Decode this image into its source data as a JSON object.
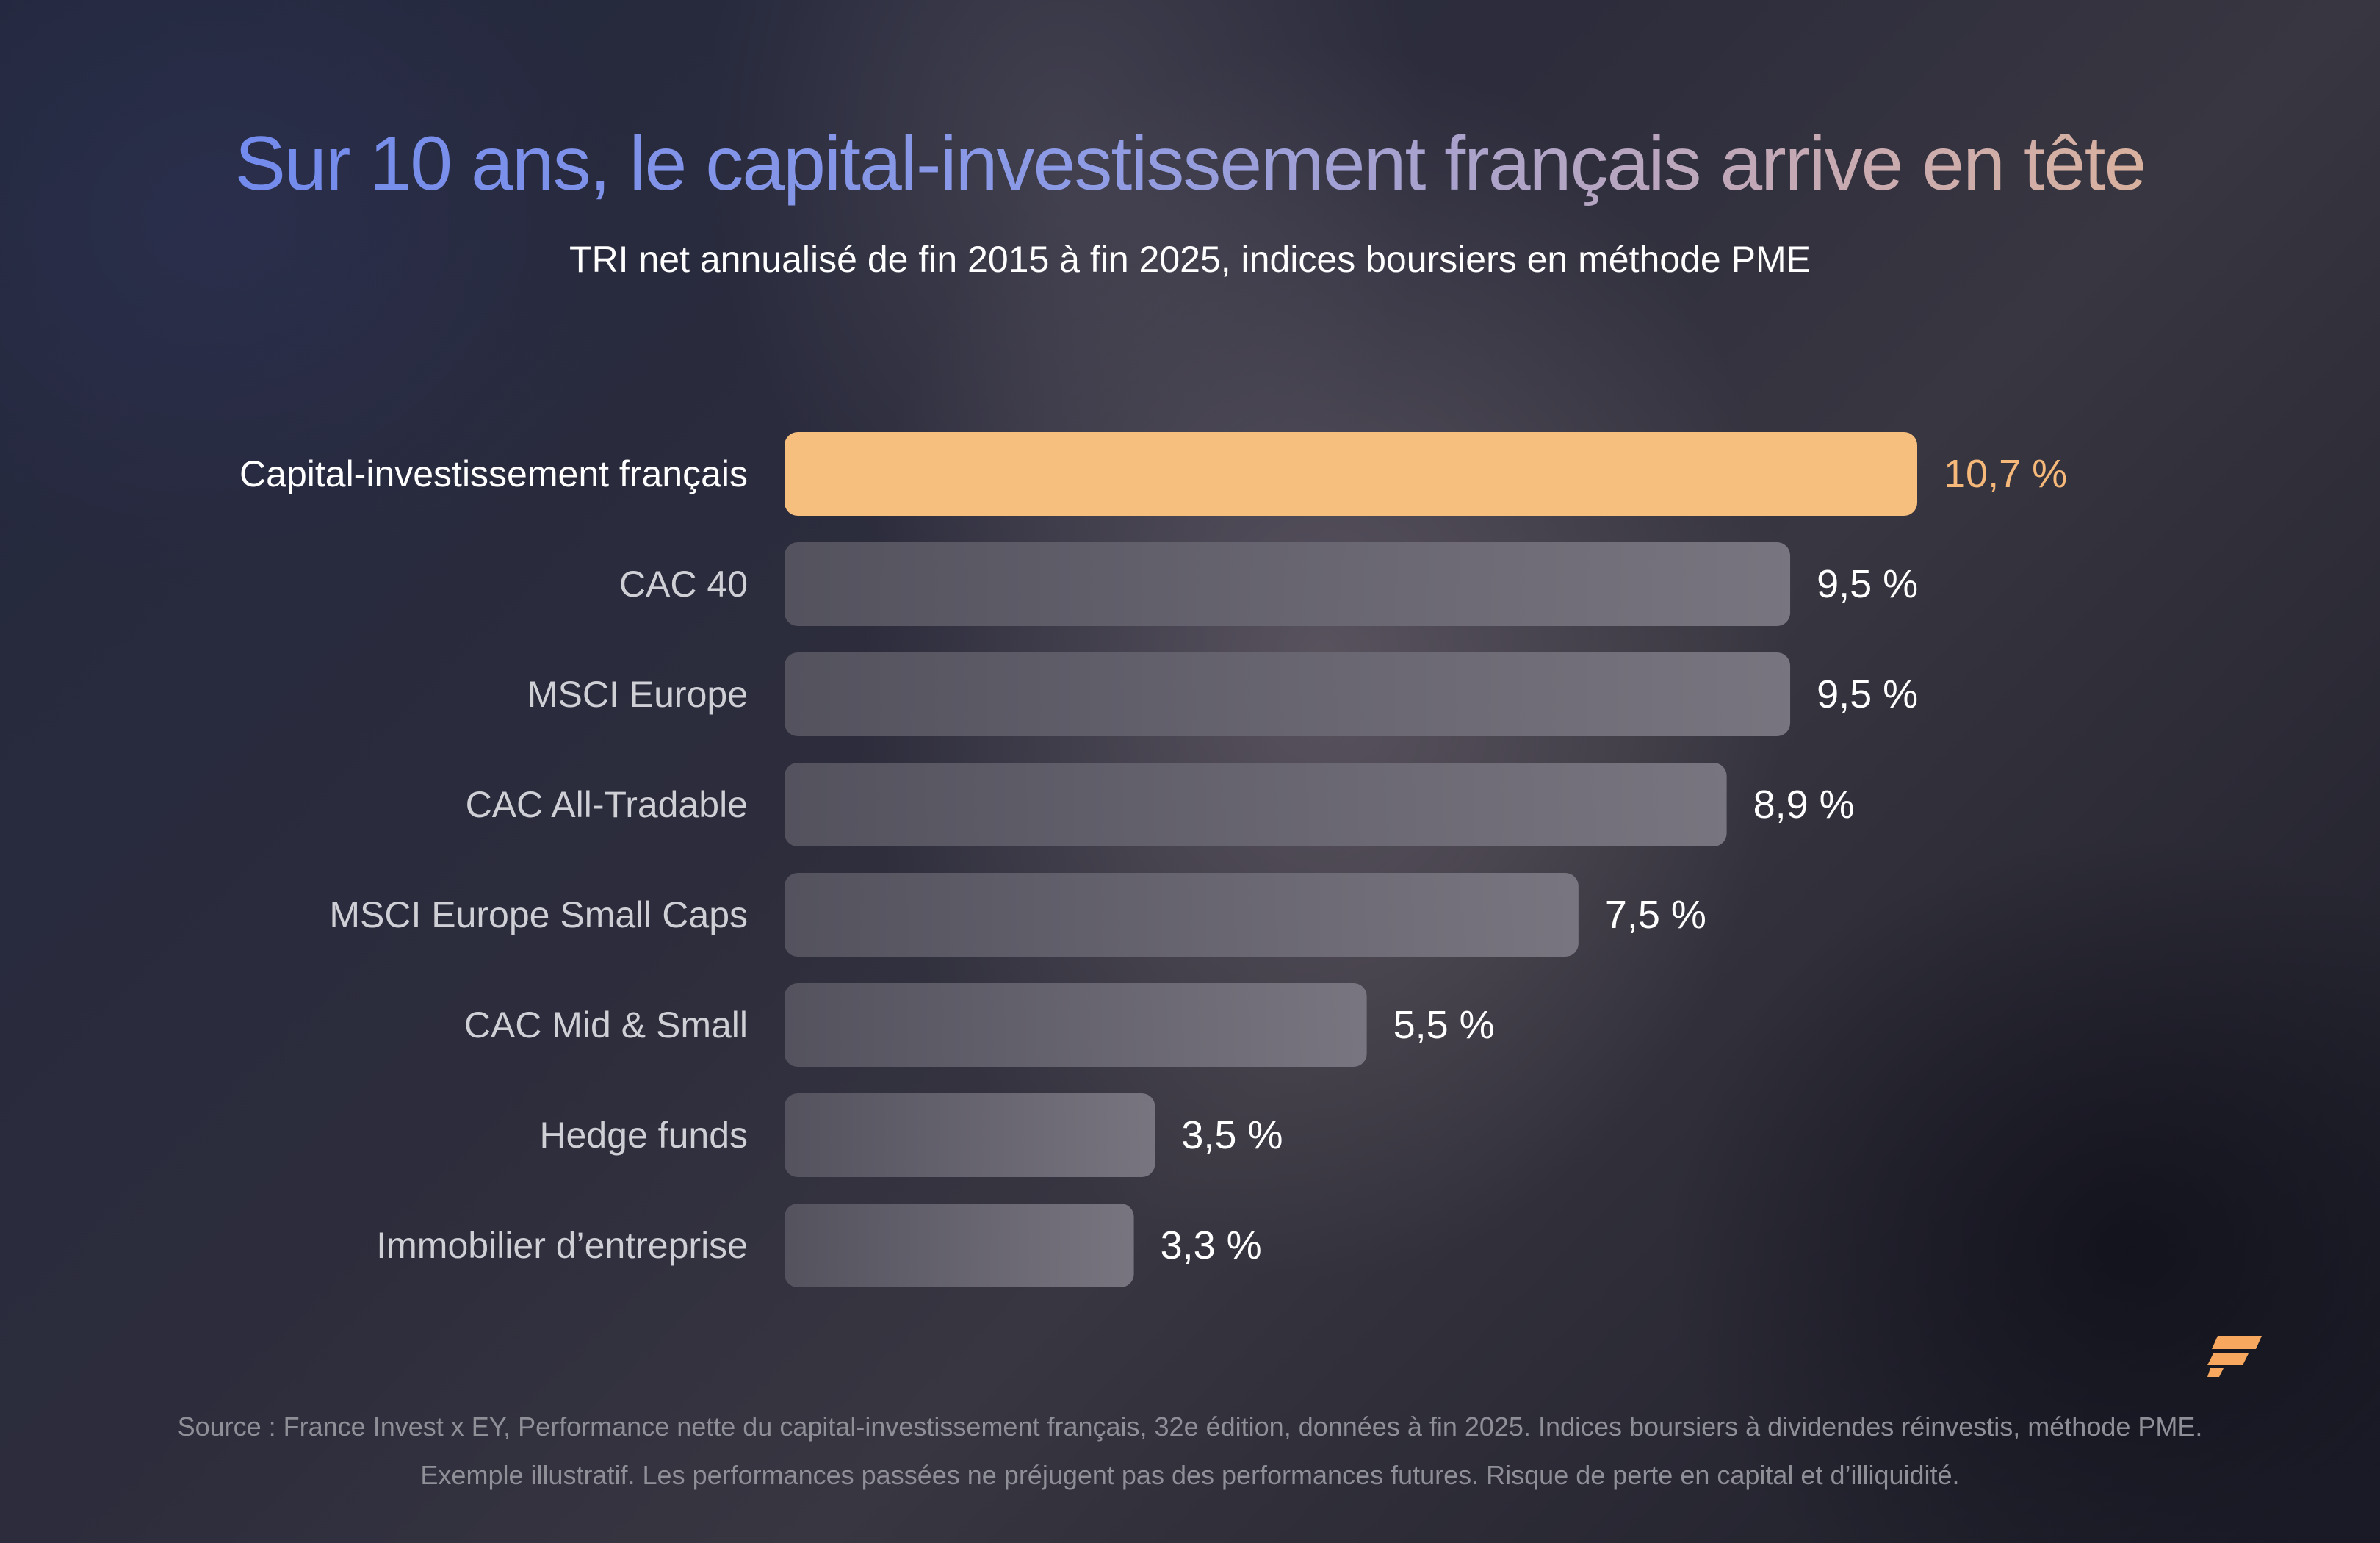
{
  "header": {
    "title": "Sur 10 ans, le capital-investissement français arrive en tête",
    "subtitle": "TRI net annualisé de fin 2015 à fin 2025, indices boursiers en méthode PME"
  },
  "chart_data": {
    "type": "bar",
    "orientation": "horizontal",
    "categories": [
      "Capital-investissement français",
      "CAC 40",
      "MSCI Europe",
      "CAC All-Tradable",
      "MSCI Europe Small Caps",
      "CAC Mid & Small",
      "Hedge funds",
      "Immobilier d’entreprise"
    ],
    "values": [
      10.7,
      9.5,
      9.5,
      8.9,
      7.5,
      5.5,
      3.5,
      3.3
    ],
    "value_labels": [
      "10,7 %",
      "9,5 %",
      "9,5 %",
      "8,9 %",
      "7,5 %",
      "5,5 %",
      "3,5 %",
      "3,3 %"
    ],
    "highlight_index": 0,
    "title": "Sur 10 ans, le capital-investissement français arrive en tête",
    "subtitle": "TRI net annualisé de fin 2015 à fin 2025, indices boursiers en méthode PME",
    "xlim": [
      0,
      10.7
    ],
    "grid": false,
    "legend": "none",
    "colors": {
      "highlight": "#f7bf7e",
      "bar": "#6e6c7a",
      "highlight_label": "#f7b97a",
      "label": "#ffffff"
    }
  },
  "footer": {
    "source": "Source : France Invest x EY, Performance nette du capital-investissement français, 32e édition, données à fin 2025. Indices boursiers à dividendes réinvestis, méthode PME.",
    "disclaimer": "Exemple illustratif. Les performances passées ne préjugent pas des performances futures. Risque de perte en capital et d’illiquidité."
  },
  "brand": {
    "logo_icon": "brand-logo-icon",
    "color": "#f7a85e"
  }
}
